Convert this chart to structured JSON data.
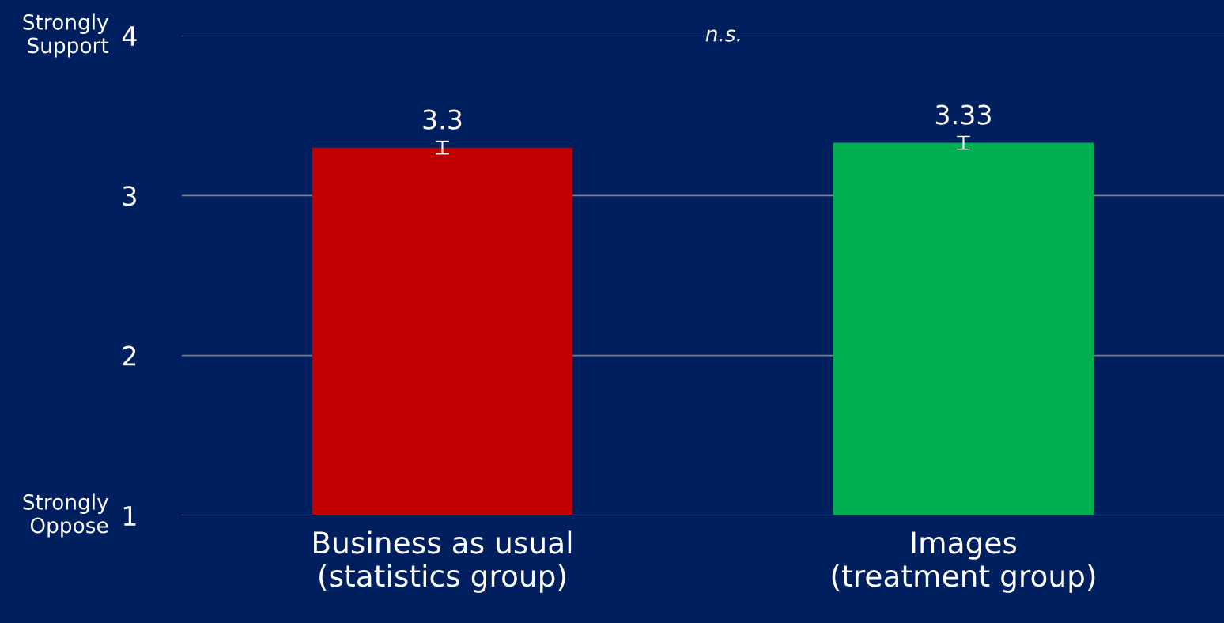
{
  "chart_data": {
    "type": "bar",
    "categories": [
      "Business as usual\n(statistics group)",
      "Images\n(treatment group)"
    ],
    "values": [
      3.3,
      3.33
    ],
    "colors": [
      "#c00000",
      "#00b050"
    ],
    "errors": [
      0.04,
      0.04
    ],
    "data_labels": true,
    "ylim": [
      1,
      4
    ],
    "yticks": [
      1,
      2,
      3,
      4
    ],
    "grid": "y",
    "annotations": [
      "Strongly\nSupport",
      "Strongly\nOppose",
      "n.s."
    ]
  }
}
